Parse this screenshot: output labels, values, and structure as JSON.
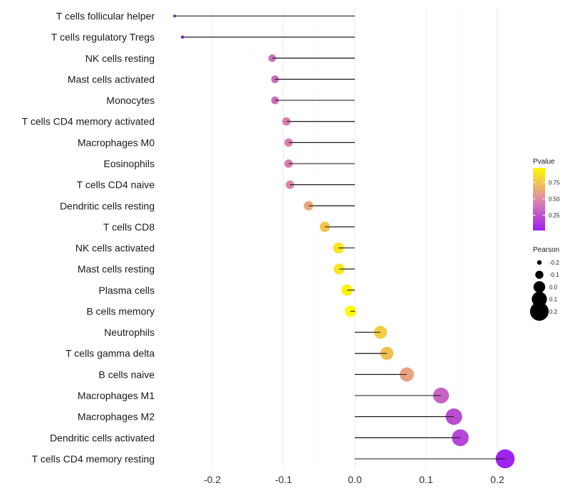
{
  "chart_data": {
    "type": "lollipop",
    "categories": [
      "T cells follicular helper",
      "T cells regulatory  Tregs",
      "NK cells resting",
      "Mast cells activated",
      "Monocytes",
      "T cells CD4 memory activated",
      "Macrophages M0",
      "Eosinophils",
      "T cells CD4 naive",
      "Dendritic cells resting",
      "T cells CD8",
      "NK cells activated",
      "Mast cells resting",
      "Plasma cells",
      "B cells memory",
      "Neutrophils",
      "T cells gamma delta",
      "B cells naive",
      "Macrophages M1",
      "Macrophages M2",
      "Dendritic cells activated",
      "T cells CD4 memory resting"
    ],
    "pearson": [
      -0.253,
      -0.242,
      -0.116,
      -0.112,
      -0.112,
      -0.096,
      -0.093,
      -0.093,
      -0.091,
      -0.065,
      -0.042,
      -0.023,
      -0.022,
      -0.011,
      -0.006,
      0.036,
      0.045,
      0.073,
      0.121,
      0.139,
      0.148,
      0.211
    ],
    "pvalue": [
      0.02,
      0.03,
      0.38,
      0.36,
      0.36,
      0.44,
      0.45,
      0.45,
      0.47,
      0.62,
      0.75,
      0.88,
      0.88,
      0.94,
      0.97,
      0.78,
      0.73,
      0.6,
      0.32,
      0.22,
      0.19,
      0.04
    ],
    "xlabel": "",
    "ylabel": "",
    "xlim": [
      -0.26,
      0.225
    ],
    "x_ticks": [
      -0.2,
      -0.1,
      0.0,
      0.1,
      0.2
    ],
    "x_tick_labels": [
      "-0.2",
      "-0.1",
      "0.0",
      "0.1",
      "0.2"
    ],
    "color_scale": {
      "title": "Pvalue",
      "ticks": [
        0.25,
        0.5,
        0.75
      ],
      "tick_labels": [
        "0.25",
        "0.50",
        "0.75"
      ],
      "range": [
        0.02,
        0.97
      ],
      "low_color": "#9b1ff0",
      "mid_color": "#e08aa8",
      "high_color": "#fffa00"
    },
    "size_legend": {
      "title": "Pearson",
      "values": [
        -0.2,
        -0.1,
        0.0,
        0.1,
        0.2
      ],
      "labels": [
        "-0.2",
        "-0.1",
        "0.0",
        "0.1",
        "0.2"
      ]
    },
    "grid": true,
    "legend_position": "right"
  }
}
